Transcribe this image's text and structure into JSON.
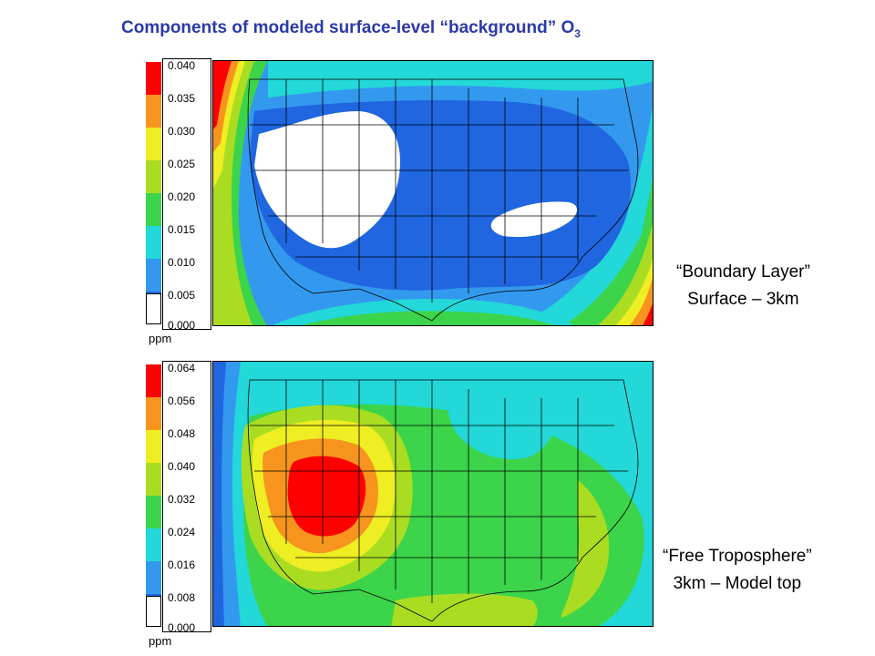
{
  "title": {
    "main": "Components of modeled surface-level “background” O",
    "sub": "3"
  },
  "palette": {
    "white": "#ffffff",
    "blue": "#1f66e0",
    "lightblue": "#3399ee",
    "cyan": "#22d8d8",
    "green": "#3cd44a",
    "yellowgreen": "#aadd22",
    "yellow": "#eeee22",
    "orange": "#f7941d",
    "red": "#ff0000"
  },
  "panels": [
    {
      "name": "boundary-layer",
      "label_line1": "“Boundary Layer”",
      "label_line2": "Surface – 3km",
      "unit": "ppm",
      "ticks": [
        "0.040",
        "0.035",
        "0.030",
        "0.025",
        "0.020",
        "0.015",
        "0.010",
        "0.005",
        "0.000"
      ]
    },
    {
      "name": "free-troposphere",
      "label_line1": "“Free Troposphere”",
      "label_line2": "3km – Model top",
      "unit": "ppm",
      "ticks": [
        "0.064",
        "0.056",
        "0.048",
        "0.040",
        "0.032",
        "0.024",
        "0.016",
        "0.008",
        "0.000"
      ]
    }
  ]
}
